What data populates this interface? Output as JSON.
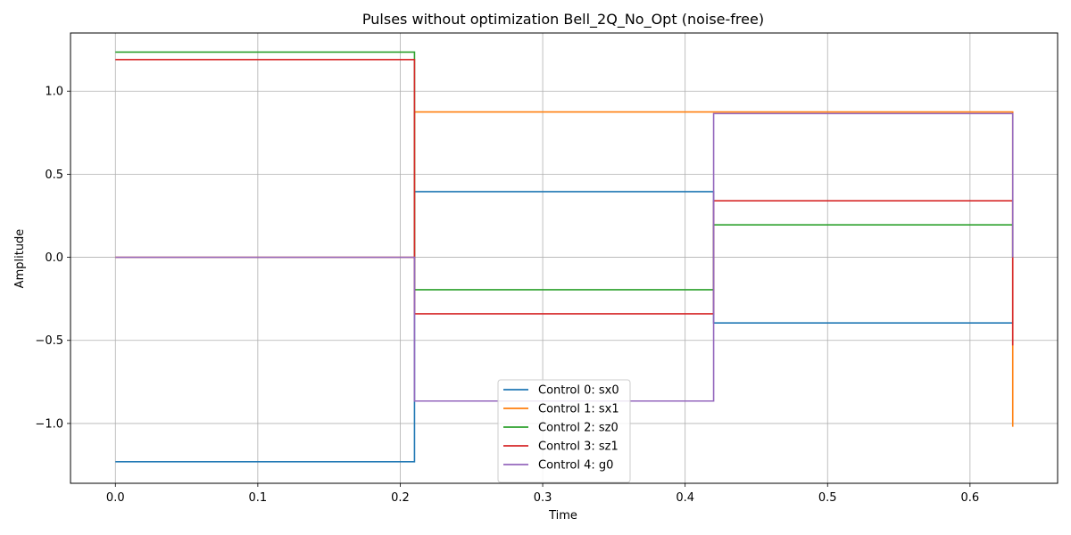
{
  "chart_data": {
    "type": "line",
    "step": "post",
    "title": "Pulses without optimization Bell_2Q_No_Opt (noise-free)",
    "xlabel": "Time",
    "ylabel": "Amplitude",
    "xlim": [
      -0.0315,
      0.6615
    ],
    "ylim": [
      -1.36,
      1.35
    ],
    "xticks": [
      0.0,
      0.1,
      0.2,
      0.3,
      0.4,
      0.5,
      0.6
    ],
    "xtick_labels": [
      "0.0",
      "0.1",
      "0.2",
      "0.3",
      "0.4",
      "0.5",
      "0.6"
    ],
    "yticks": [
      -1.0,
      -0.5,
      0.0,
      0.5,
      1.0
    ],
    "ytick_labels": [
      "−1.0",
      "−0.5",
      "0.0",
      "0.5",
      "1.0"
    ],
    "grid": true,
    "legend_position": "bottom-center",
    "x": [
      0.0,
      0.21,
      0.42,
      0.63
    ],
    "series": [
      {
        "name": "Control 0: sx0",
        "color": "#1f77b4",
        "values": [
          -1.23,
          0.395,
          -0.395,
          -0.4
        ]
      },
      {
        "name": "Control 1: sx1",
        "color": "#ff7f0e",
        "values": [
          0.0,
          0.875,
          0.875,
          -1.02
        ]
      },
      {
        "name": "Control 2: sz0",
        "color": "#2ca02c",
        "values": [
          1.235,
          -0.195,
          0.195,
          0.0
        ]
      },
      {
        "name": "Control 3: sz1",
        "color": "#d62728",
        "values": [
          1.19,
          -0.34,
          0.34,
          -0.53
        ]
      },
      {
        "name": "Control 4: g0",
        "color": "#9467bd",
        "values": [
          0.0,
          -0.865,
          0.865,
          0.0
        ]
      }
    ]
  }
}
